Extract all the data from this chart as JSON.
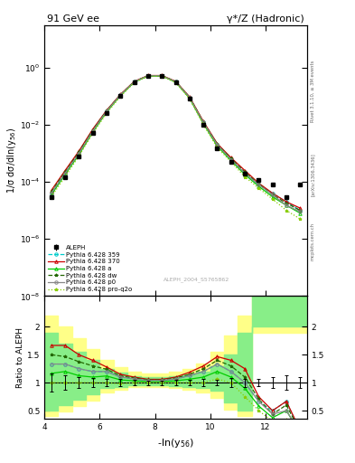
{
  "title_left": "91 GeV ee",
  "title_right": "γ*/Z (Hadronic)",
  "ylabel_top": "1/σ dσ/dln(y$_{56}$)",
  "ylabel_bottom": "Ratio to ALEPH",
  "xlabel": "-ln(y$_{56}$)",
  "watermark": "ALEPH_2004_S5765862",
  "rivet_label": "Rivet 3.1.10, ≥ 3M events",
  "arxiv_label": "[arXiv:1306.3436]",
  "mcplots_label": "mcplots.cern.ch",
  "xlim": [
    4,
    13.5
  ],
  "aleph_x": [
    4.25,
    4.75,
    5.25,
    5.75,
    6.25,
    6.75,
    7.25,
    7.75,
    8.25,
    8.75,
    9.25,
    9.75,
    10.25,
    10.75,
    11.25,
    11.75,
    12.25,
    12.75,
    13.25
  ],
  "aleph_y": [
    3e-05,
    0.00015,
    0.0008,
    0.005,
    0.025,
    0.1,
    0.3,
    0.5,
    0.5,
    0.3,
    0.08,
    0.01,
    0.0015,
    0.0005,
    0.0002,
    0.00012,
    8e-05,
    3e-05,
    8e-05
  ],
  "aleph_yerr": [
    5e-06,
    2e-05,
    8e-05,
    0.0004,
    0.0015,
    0.006,
    0.015,
    0.02,
    0.02,
    0.015,
    0.004,
    0.0006,
    8e-05,
    4e-05,
    1.5e-05,
    8e-06,
    8e-06,
    4e-06,
    8e-06
  ],
  "aleph_color": "#000000",
  "aleph_label": "ALEPH",
  "py359_x": [
    4.25,
    4.75,
    5.25,
    5.75,
    6.25,
    6.75,
    7.25,
    7.75,
    8.25,
    8.75,
    9.25,
    9.75,
    10.25,
    10.75,
    11.25,
    11.75,
    12.25,
    12.75,
    13.25
  ],
  "py359_y": [
    4e-05,
    0.0002,
    0.001,
    0.006,
    0.03,
    0.11,
    0.32,
    0.52,
    0.52,
    0.32,
    0.09,
    0.012,
    0.002,
    0.0006,
    0.0002,
    8e-05,
    4e-05,
    2e-05,
    1e-05
  ],
  "py359_color": "#00cccc",
  "py359_style": "--",
  "py359_marker": "o",
  "py359_label": "Pythia 6.428 359",
  "py370_x": [
    4.25,
    4.75,
    5.25,
    5.75,
    6.25,
    6.75,
    7.25,
    7.75,
    8.25,
    8.75,
    9.25,
    9.75,
    10.25,
    10.75,
    11.25,
    11.75,
    12.25,
    12.75,
    13.25
  ],
  "py370_y": [
    5e-05,
    0.00025,
    0.0012,
    0.007,
    0.032,
    0.115,
    0.33,
    0.53,
    0.53,
    0.33,
    0.095,
    0.013,
    0.0022,
    0.0007,
    0.00025,
    9e-05,
    4e-05,
    2e-05,
    1.2e-05
  ],
  "py370_color": "#cc0000",
  "py370_style": "-",
  "py370_marker": "^",
  "py370_label": "Pythia 6.428 370",
  "pya_x": [
    4.25,
    4.75,
    5.25,
    5.75,
    6.25,
    6.75,
    7.25,
    7.75,
    8.25,
    8.75,
    9.25,
    9.75,
    10.25,
    10.75,
    11.25,
    11.75,
    12.25,
    12.75,
    13.25
  ],
  "pya_y": [
    3.5e-05,
    0.00018,
    0.0009,
    0.0055,
    0.028,
    0.105,
    0.31,
    0.51,
    0.51,
    0.31,
    0.085,
    0.011,
    0.0018,
    0.00055,
    0.00018,
    7e-05,
    3e-05,
    1.5e-05,
    8e-06
  ],
  "pya_color": "#00cc00",
  "pya_style": "-",
  "pya_marker": "^",
  "pya_label": "Pythia 6.428 a",
  "pydw_x": [
    4.25,
    4.75,
    5.25,
    5.75,
    6.25,
    6.75,
    7.25,
    7.75,
    8.25,
    8.75,
    9.25,
    9.75,
    10.25,
    10.75,
    11.25,
    11.75,
    12.25,
    12.75,
    13.25
  ],
  "pydw_y": [
    4.5e-05,
    0.00022,
    0.0011,
    0.0065,
    0.031,
    0.112,
    0.325,
    0.525,
    0.525,
    0.325,
    0.092,
    0.0125,
    0.0021,
    0.00065,
    0.00022,
    8.5e-05,
    3.5e-05,
    1.8e-05,
    1e-05
  ],
  "pydw_color": "#226600",
  "pydw_style": "--",
  "pydw_marker": "*",
  "pydw_label": "Pythia 6.428 dw",
  "pyp0_x": [
    4.25,
    4.75,
    5.25,
    5.75,
    6.25,
    6.75,
    7.25,
    7.75,
    8.25,
    8.75,
    9.25,
    9.75,
    10.25,
    10.75,
    11.25,
    11.75,
    12.25,
    12.75,
    13.25
  ],
  "pyp0_y": [
    4e-05,
    0.0002,
    0.001,
    0.006,
    0.03,
    0.11,
    0.32,
    0.52,
    0.52,
    0.32,
    0.09,
    0.012,
    0.002,
    0.0006,
    0.0002,
    8e-05,
    3.5e-05,
    1.5e-05,
    9e-06
  ],
  "pyp0_color": "#888888",
  "pyp0_style": "-",
  "pyp0_marker": "o",
  "pyp0_label": "Pythia 6.428 p0",
  "pyproq2o_x": [
    4.25,
    4.75,
    5.25,
    5.75,
    6.25,
    6.75,
    7.25,
    7.75,
    8.25,
    8.75,
    9.25,
    9.75,
    10.25,
    10.75,
    11.25,
    11.75,
    12.25,
    12.75,
    13.25
  ],
  "pyproq2o_y": [
    3e-05,
    0.00015,
    0.0008,
    0.005,
    0.025,
    0.098,
    0.3,
    0.5,
    0.5,
    0.3,
    0.08,
    0.01,
    0.0016,
    0.0005,
    0.00015,
    6e-05,
    2.5e-05,
    1e-05,
    5e-06
  ],
  "pyproq2o_color": "#88cc00",
  "pyproq2o_style": ":",
  "pyproq2o_marker": "*",
  "pyproq2o_label": "Pythia 6.428 pro-q2o",
  "band_x_edges": [
    4.0,
    4.5,
    5.0,
    5.5,
    6.0,
    6.5,
    7.0,
    7.5,
    8.0,
    8.5,
    9.0,
    9.5,
    10.0,
    10.5,
    11.0,
    11.5,
    12.0,
    12.5,
    13.0,
    13.5
  ],
  "band_green_low": [
    0.5,
    0.6,
    0.7,
    0.8,
    0.9,
    0.93,
    0.95,
    0.96,
    0.96,
    0.94,
    0.92,
    0.9,
    0.85,
    0.65,
    0.5,
    2.0,
    2.0,
    2.0,
    2.0,
    2.0
  ],
  "band_green_high": [
    1.9,
    1.7,
    1.55,
    1.4,
    1.25,
    1.18,
    1.12,
    1.1,
    1.1,
    1.12,
    1.15,
    1.2,
    1.3,
    1.5,
    1.9,
    2.6,
    2.6,
    2.6,
    2.6,
    2.6
  ],
  "band_yellow_low": [
    0.4,
    0.48,
    0.58,
    0.68,
    0.82,
    0.88,
    0.92,
    0.93,
    0.93,
    0.9,
    0.87,
    0.82,
    0.73,
    0.52,
    0.4,
    1.9,
    1.9,
    1.9,
    1.9,
    1.9
  ],
  "band_yellow_high": [
    2.2,
    2.0,
    1.8,
    1.6,
    1.4,
    1.28,
    1.2,
    1.16,
    1.16,
    1.2,
    1.25,
    1.35,
    1.55,
    1.85,
    2.2,
    2.6,
    2.6,
    2.6,
    2.6,
    2.6
  ],
  "ratio_ylim": [
    0.35,
    2.55
  ],
  "ratio_yticks": [
    0.5,
    1.0,
    1.5,
    2.0
  ],
  "ratio_yticklabels": [
    "0.5",
    "1",
    "1.5",
    "2"
  ]
}
